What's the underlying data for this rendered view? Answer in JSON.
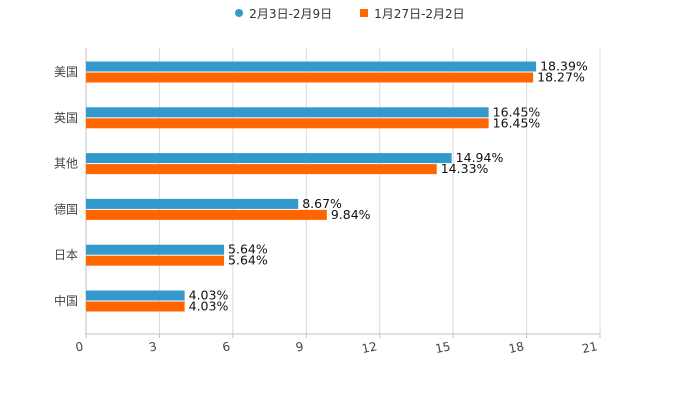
{
  "chart_data": {
    "type": "bar",
    "orientation": "horizontal",
    "categories": [
      "美国",
      "英国",
      "其他",
      "德国",
      "日本",
      "中国"
    ],
    "series": [
      {
        "name": "2月3日-2月9日",
        "color": "#3399cc",
        "marker": "circle",
        "values": [
          18.39,
          16.45,
          14.94,
          8.67,
          5.64,
          4.03
        ],
        "labels": [
          "18.39%",
          "16.45%",
          "14.94%",
          "8.67%",
          "5.64%",
          "4.03%"
        ]
      },
      {
        "name": "1月27日-2月2日",
        "color": "#ff6600",
        "marker": "square",
        "values": [
          18.27,
          16.45,
          14.33,
          9.84,
          5.64,
          4.03
        ],
        "labels": [
          "18.27%",
          "16.45%",
          "14.33%",
          "9.84%",
          "5.64%",
          "4.03%"
        ]
      }
    ],
    "xlim": [
      0,
      21
    ],
    "xticks": [
      0,
      3,
      6,
      9,
      12,
      15,
      18,
      21
    ],
    "xtick_labels": [
      "0",
      "3",
      "6",
      "9",
      "12",
      "15",
      "18",
      "21"
    ],
    "grid": true,
    "legend_position": "top-center",
    "title": "",
    "xlabel": "",
    "ylabel": ""
  }
}
